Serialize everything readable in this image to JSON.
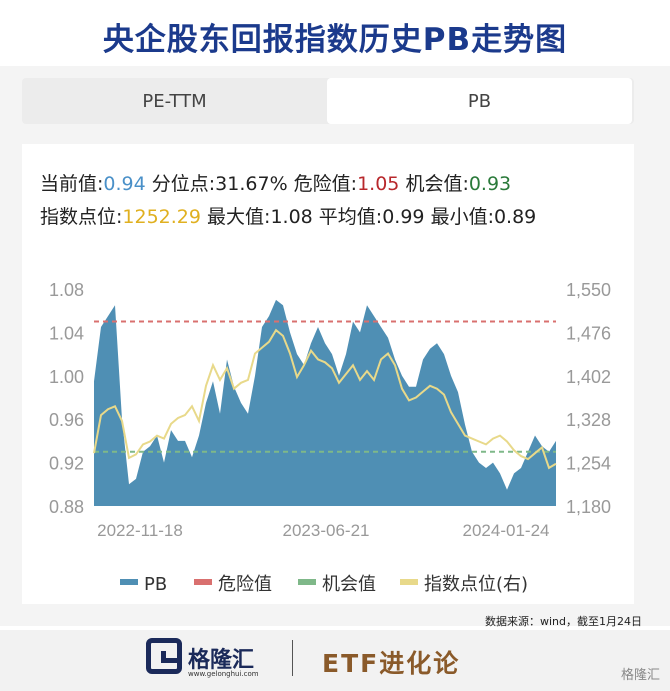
{
  "title": "央企股东回报指数历史PB走势图",
  "tabs": [
    {
      "label": "PE-TTM",
      "active": false
    },
    {
      "label": "PB",
      "active": true
    }
  ],
  "stats": {
    "current_label": "当前值:",
    "current_value": "0.94",
    "percentile_label": "分位点:",
    "percentile_value": "31.67%",
    "danger_label": "危险值:",
    "danger_value": "1.05",
    "opportunity_label": "机会值:",
    "opportunity_value": "0.93",
    "index_label": "指数点位:",
    "index_value": "1252.29",
    "max_label": "最大值:",
    "max_value": "1.08",
    "avg_label": "平均值:",
    "avg_value": "0.99",
    "min_label": "最小值:",
    "min_value": "0.89"
  },
  "source": "数据来源：wind，截至1月24日",
  "footer": {
    "brand": "格隆汇",
    "brand_url": "www.gelonghui.com",
    "etf": "ETF进化论",
    "watermark": "格隆汇"
  },
  "colors": {
    "pb_fill": "#4f8fb4",
    "danger": "#d9706f",
    "opportunity": "#7fb889",
    "index_line": "#e8d98a"
  },
  "chart_data": {
    "type": "area",
    "x_tick_labels": [
      "2022-11-18",
      "2023-06-21",
      "2024-01-24"
    ],
    "left_axis": {
      "ticks": [
        "0.88",
        "0.92",
        "0.96",
        "1.00",
        "1.04",
        "1.08"
      ],
      "range": [
        0.88,
        1.08
      ]
    },
    "right_axis": {
      "ticks": [
        "1,180",
        "1,254",
        "1,328",
        "1,402",
        "1,476",
        "1,550"
      ],
      "range": [
        1180,
        1550
      ]
    },
    "danger_value": 1.05,
    "opportunity_value": 0.93,
    "legend": [
      "PB",
      "危险值",
      "机会值",
      "指数点位(右)"
    ],
    "legend_position": "bottom",
    "series": [
      {
        "name": "PB",
        "axis": "left",
        "values": [
          0.995,
          1.045,
          1.055,
          1.065,
          0.96,
          0.9,
          0.905,
          0.93,
          0.935,
          0.945,
          0.92,
          0.95,
          0.94,
          0.94,
          0.925,
          0.945,
          0.975,
          0.995,
          0.965,
          1.015,
          0.99,
          0.975,
          0.965,
          1.0,
          1.045,
          1.055,
          1.07,
          1.065,
          1.04,
          1.02,
          1.01,
          1.03,
          1.045,
          1.03,
          1.02,
          1.0,
          1.02,
          1.05,
          1.04,
          1.065,
          1.055,
          1.045,
          1.035,
          1.015,
          1.0,
          0.99,
          0.99,
          1.015,
          1.025,
          1.03,
          1.02,
          1.0,
          0.985,
          0.955,
          0.93,
          0.92,
          0.915,
          0.92,
          0.91,
          0.895,
          0.91,
          0.915,
          0.93,
          0.945,
          0.935,
          0.93,
          0.94
        ]
      },
      {
        "name": "指数点位(右)",
        "axis": "right",
        "values": [
          1270,
          1335,
          1345,
          1350,
          1325,
          1262,
          1268,
          1285,
          1290,
          1300,
          1295,
          1320,
          1330,
          1335,
          1350,
          1325,
          1385,
          1420,
          1395,
          1415,
          1380,
          1390,
          1395,
          1440,
          1450,
          1460,
          1480,
          1470,
          1440,
          1400,
          1420,
          1445,
          1430,
          1425,
          1415,
          1390,
          1405,
          1420,
          1395,
          1410,
          1395,
          1430,
          1440,
          1420,
          1380,
          1360,
          1365,
          1375,
          1385,
          1380,
          1370,
          1340,
          1320,
          1300,
          1295,
          1290,
          1285,
          1295,
          1300,
          1290,
          1275,
          1265,
          1260,
          1270,
          1280,
          1245,
          1252
        ]
      }
    ]
  }
}
